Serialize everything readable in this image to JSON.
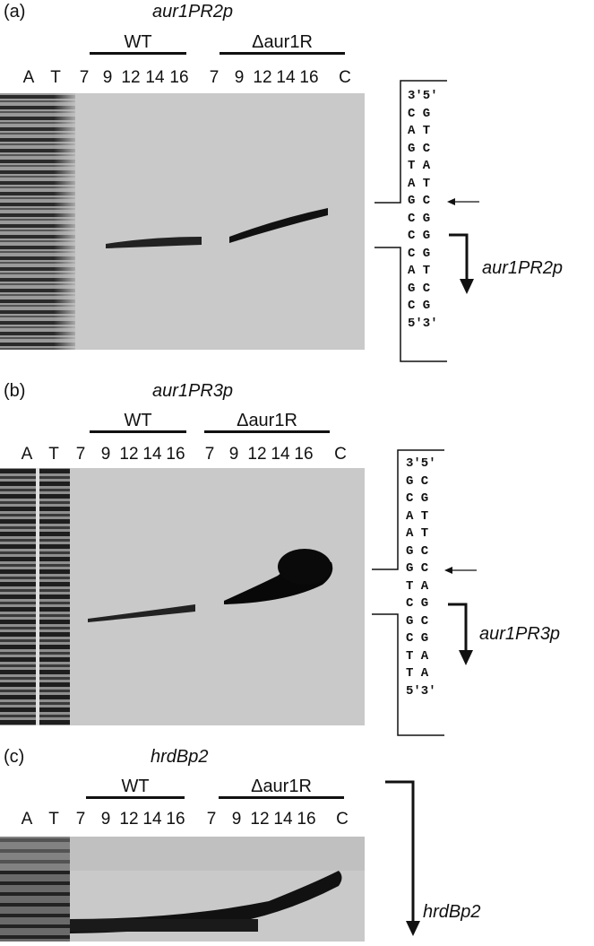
{
  "panels": [
    {
      "label": "(a)",
      "title": "aur1PR2p",
      "wt": "WT",
      "mutant": "Δaur1R",
      "lanes": [
        "A",
        "T",
        "7",
        "9",
        "12",
        "14",
        "16",
        "7",
        "9",
        "12",
        "14",
        "16",
        "C"
      ],
      "sequence": [
        "3'5'",
        "C G",
        "A T",
        "G C",
        "T A",
        "A T",
        "G C",
        "C G",
        "C G",
        "C G",
        "A T",
        "G C",
        "C G",
        "5'3'"
      ],
      "promoter": "aur1PR2p"
    },
    {
      "label": "(b)",
      "title": "aur1PR3p",
      "wt": "WT",
      "mutant": "Δaur1R",
      "lanes": [
        "A",
        "T",
        "7",
        "9",
        "12",
        "14",
        "16",
        "7",
        "9",
        "12",
        "14",
        "16",
        "C"
      ],
      "sequence": [
        "3'5'",
        "G C",
        "C G",
        "A T",
        "A T",
        "G C",
        "G C",
        "T A",
        "C G",
        "G C",
        "C G",
        "T A",
        "T A",
        "5'3'"
      ],
      "promoter": "aur1PR3p"
    },
    {
      "label": "(c)",
      "title": "hrdBp2",
      "wt": "WT",
      "mutant": "Δaur1R",
      "lanes": [
        "A",
        "T",
        "7",
        "9",
        "12",
        "14",
        "16",
        "7",
        "9",
        "12",
        "14",
        "16",
        "C"
      ],
      "promoter": "hrdBp2"
    }
  ]
}
